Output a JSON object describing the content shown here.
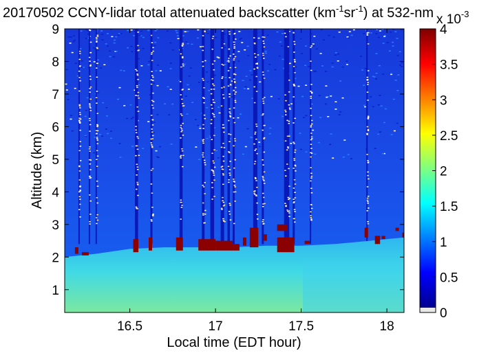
{
  "chart_data": {
    "type": "heatmap",
    "title": {
      "prefix": "20170502 CCNY-lidar total attenuated backscatter (km",
      "sup1": "-1",
      "mid": "sr",
      "sup2": "-1",
      "suffix": ") at 532-nm"
    },
    "xlabel": "Local time (EDT hour)",
    "ylabel": "Altitude (km)",
    "xlim": [
      16.12,
      18.1
    ],
    "ylim": [
      0.3,
      9
    ],
    "xticks": [
      "16.5",
      "17",
      "17.5",
      "18"
    ],
    "yticks": [
      "1",
      "2",
      "3",
      "4",
      "5",
      "6",
      "7",
      "8",
      "9"
    ],
    "colorbar": {
      "range": [
        0,
        4
      ],
      "ticks": [
        "0",
        "0.5",
        "1",
        "1.5",
        "2",
        "2.5",
        "3",
        "3.5",
        "4"
      ],
      "multiplier": "x 10",
      "multiplier_exponent": "-3"
    },
    "boundary_layer_top_km": [
      {
        "t": 16.12,
        "z": 2.0
      },
      {
        "t": 16.3,
        "z": 2.1
      },
      {
        "t": 16.5,
        "z": 2.25
      },
      {
        "t": 16.7,
        "z": 2.3
      },
      {
        "t": 16.9,
        "z": 2.3
      },
      {
        "t": 17.1,
        "z": 2.3
      },
      {
        "t": 17.3,
        "z": 2.35
      },
      {
        "t": 17.5,
        "z": 2.35
      },
      {
        "t": 17.7,
        "z": 2.4
      },
      {
        "t": 17.9,
        "z": 2.5
      },
      {
        "t": 18.1,
        "z": 2.6
      }
    ],
    "cloud_layers": [
      {
        "t_start": 16.18,
        "t_end": 16.2,
        "z_bottom": 2.1,
        "z_top": 2.3
      },
      {
        "t_start": 16.22,
        "t_end": 16.26,
        "z_bottom": 2.05,
        "z_top": 2.15
      },
      {
        "t_start": 16.52,
        "t_end": 16.55,
        "z_bottom": 2.15,
        "z_top": 2.55
      },
      {
        "t_start": 16.61,
        "t_end": 16.63,
        "z_bottom": 2.2,
        "z_top": 2.6
      },
      {
        "t_start": 16.77,
        "t_end": 16.81,
        "z_bottom": 2.2,
        "z_top": 2.6
      },
      {
        "t_start": 16.9,
        "t_end": 17.0,
        "z_bottom": 2.2,
        "z_top": 2.55
      },
      {
        "t_start": 17.0,
        "t_end": 17.1,
        "z_bottom": 2.2,
        "z_top": 2.5
      },
      {
        "t_start": 17.1,
        "t_end": 17.14,
        "z_bottom": 2.2,
        "z_top": 2.4
      },
      {
        "t_start": 17.16,
        "t_end": 17.18,
        "z_bottom": 2.35,
        "z_top": 2.6
      },
      {
        "t_start": 17.2,
        "t_end": 17.25,
        "z_bottom": 2.3,
        "z_top": 2.9
      },
      {
        "t_start": 17.28,
        "t_end": 17.3,
        "z_bottom": 2.5,
        "z_top": 2.7
      },
      {
        "t_start": 17.36,
        "t_end": 17.46,
        "z_bottom": 2.15,
        "z_top": 2.6
      },
      {
        "t_start": 17.36,
        "t_end": 17.42,
        "z_bottom": 2.8,
        "z_top": 3.0
      },
      {
        "t_start": 17.52,
        "t_end": 17.55,
        "z_bottom": 2.4,
        "z_top": 2.5
      },
      {
        "t_start": 17.87,
        "t_end": 17.89,
        "z_bottom": 2.6,
        "z_top": 2.9
      },
      {
        "t_start": 17.93,
        "t_end": 17.96,
        "z_bottom": 2.4,
        "z_top": 2.65
      },
      {
        "t_start": 17.97,
        "t_end": 17.99,
        "z_bottom": 2.55,
        "z_top": 2.65
      },
      {
        "t_start": 18.05,
        "t_end": 18.07,
        "z_bottom": 2.8,
        "z_top": 2.9
      },
      {
        "t_start": 18.09,
        "t_end": 18.1,
        "z_bottom": 2.6,
        "z_top": 2.75
      }
    ],
    "profile_gaps": [
      {
        "t": 16.2,
        "w": 0.006
      },
      {
        "t": 16.26,
        "w": 0.005
      },
      {
        "t": 16.3,
        "w": 0.005
      },
      {
        "t": 16.53,
        "w": 0.018
      },
      {
        "t": 16.62,
        "w": 0.012
      },
      {
        "t": 16.79,
        "w": 0.018
      },
      {
        "t": 16.92,
        "w": 0.016
      },
      {
        "t": 16.97,
        "w": 0.022
      },
      {
        "t": 17.03,
        "w": 0.02
      },
      {
        "t": 17.07,
        "w": 0.014
      },
      {
        "t": 17.1,
        "w": 0.012
      },
      {
        "t": 17.22,
        "w": 0.024
      },
      {
        "t": 17.27,
        "w": 0.012
      },
      {
        "t": 17.4,
        "w": 0.03
      },
      {
        "t": 17.45,
        "w": 0.012
      },
      {
        "t": 17.55,
        "w": 0.006
      },
      {
        "t": 17.88,
        "w": 0.008
      }
    ],
    "grid": false
  }
}
